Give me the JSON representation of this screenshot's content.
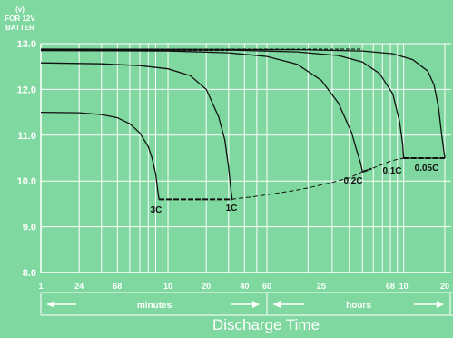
{
  "chart_data": {
    "type": "line",
    "ylabel_lines": [
      "(v)",
      "FOR 12V",
      "BATTER"
    ],
    "yticks": [
      "13.0",
      "12.0",
      "11.0",
      "10.0",
      "9.0",
      "8.0"
    ],
    "ylim": [
      8.0,
      13.0
    ],
    "xticks": [
      "1",
      "24",
      "68",
      "10",
      "20",
      "40",
      "60",
      "25",
      "68",
      "10",
      "20"
    ],
    "band_labels": [
      "minutes",
      "hours"
    ],
    "xlabel": "Discharge Time",
    "grid": true,
    "series": [
      {
        "name": "3C",
        "x": [
          1,
          2,
          3,
          4,
          5,
          6,
          7,
          7.5,
          8,
          8.3,
          8.5
        ],
        "y": [
          11.5,
          11.49,
          11.45,
          11.38,
          11.25,
          11.05,
          10.75,
          10.5,
          10.15,
          9.8,
          9.6
        ]
      },
      {
        "name": "1C",
        "x": [
          1,
          3,
          6,
          10,
          15,
          20,
          25,
          28,
          30,
          31,
          32
        ],
        "y": [
          12.58,
          12.56,
          12.52,
          12.45,
          12.3,
          12.0,
          11.4,
          10.9,
          10.3,
          9.9,
          9.6
        ]
      },
      {
        "name": "0.2C",
        "x": [
          1,
          10,
          30,
          60,
          100,
          150,
          200,
          250,
          270,
          290,
          300
        ],
        "y": [
          12.85,
          12.84,
          12.8,
          12.72,
          12.55,
          12.2,
          11.7,
          11.05,
          10.7,
          10.4,
          10.2
        ]
      },
      {
        "name": "0.1C",
        "x": [
          1,
          30,
          100,
          200,
          300,
          400,
          500,
          560,
          590,
          600
        ],
        "y": [
          12.87,
          12.86,
          12.82,
          12.74,
          12.6,
          12.35,
          11.9,
          11.3,
          10.8,
          10.5
        ]
      },
      {
        "name": "0.05C",
        "x": [
          1,
          100,
          300,
          500,
          700,
          900,
          1000,
          1080,
          1140,
          1200
        ],
        "y": [
          12.88,
          12.87,
          12.84,
          12.78,
          12.65,
          12.4,
          12.1,
          11.6,
          11.0,
          10.5
        ]
      }
    ],
    "endpoint_line": {
      "x": [
        8.5,
        32,
        35,
        45,
        60,
        90,
        120,
        180,
        240,
        300,
        350,
        400,
        450,
        500,
        600,
        900,
        1200
      ],
      "y": [
        9.6,
        9.6,
        9.62,
        9.65,
        9.7,
        9.78,
        9.85,
        9.97,
        10.07,
        10.2,
        10.27,
        10.34,
        10.4,
        10.45,
        10.5,
        10.5,
        10.5
      ],
      "solid_segments": [
        [
          8.5,
          32
        ],
        [
          300,
          350
        ],
        [
          600,
          1200
        ]
      ]
    },
    "labels": [
      {
        "text": "3C",
        "series": "3C"
      },
      {
        "text": "1C",
        "series": "1C"
      },
      {
        "text": "0.2C",
        "series": "0.2C"
      },
      {
        "text": "0.1C",
        "series": "0.1C"
      },
      {
        "text": "0.05C",
        "series": "0.05C"
      }
    ]
  }
}
